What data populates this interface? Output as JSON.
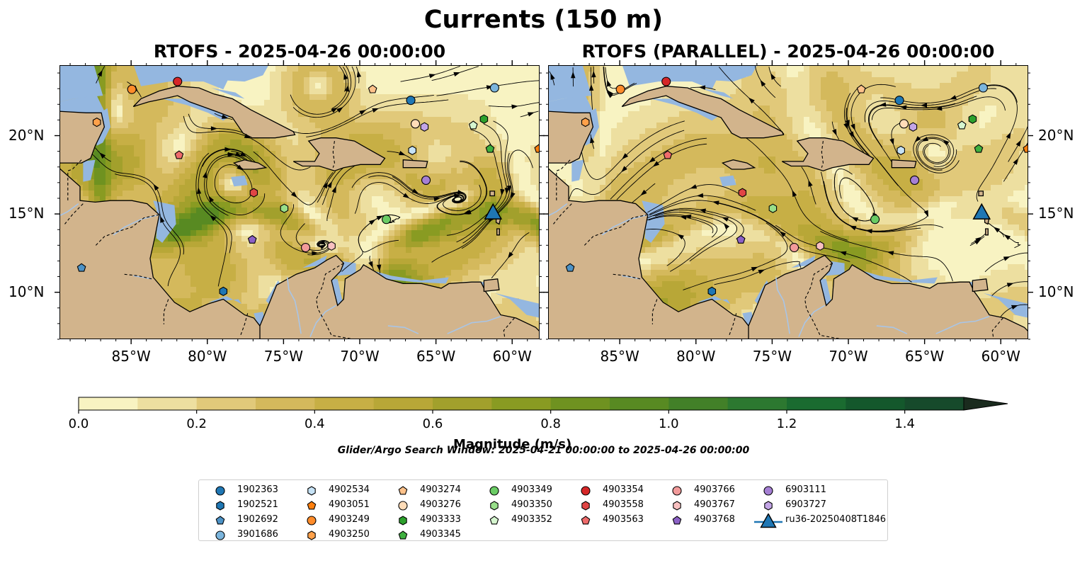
{
  "figure": {
    "title": "Currents (150 m)",
    "left_panel_title": "RTOFS - 2025-04-26 00:00:00",
    "right_panel_title": "RTOFS (PARALLEL) - 2025-04-26 00:00:00",
    "search_window": "Glider/Argo Search Window: 2025-04-21 00:00:00 to 2025-04-26 00:00:00"
  },
  "axes": {
    "x_ticks": [
      "85°W",
      "80°W",
      "75°W",
      "70°W",
      "65°W",
      "60°W"
    ],
    "x_values": [
      -85,
      -80,
      -75,
      -70,
      -65,
      -60
    ],
    "y_ticks": [
      "20°N",
      "15°N",
      "10°N"
    ],
    "y_values": [
      20,
      15,
      10
    ],
    "lon_range": [
      -89.7,
      -58.2
    ],
    "lat_range": [
      7.0,
      24.5
    ]
  },
  "colorbar": {
    "title": "Magnitude (m/s)",
    "ticks": [
      "0.0",
      "0.2",
      "0.4",
      "0.6",
      "0.8",
      "1.0",
      "1.2",
      "1.4"
    ],
    "tick_values": [
      0,
      0.2,
      0.4,
      0.6,
      0.8,
      1.0,
      1.2,
      1.4
    ],
    "range": [
      0,
      1.5
    ],
    "extend": "max",
    "colors": [
      "#f8f3c2",
      "#eddfa0",
      "#e1c97a",
      "#d4b95c",
      "#c7af45",
      "#b8a737",
      "#a2a02c",
      "#899b22",
      "#6f9220",
      "#588a22",
      "#428028",
      "#2c7830",
      "#1a6b30",
      "#14582c",
      "#164a2b",
      "#1b3a26",
      "#1a2b1e"
    ]
  },
  "colors": {
    "land": "#d2b48c",
    "water": "#94b7e0",
    "lakes": "#a9c5e6"
  },
  "legend": {
    "items": [
      {
        "label": "1902363",
        "color": "#1f77b4",
        "marker": "circle"
      },
      {
        "label": "1902521",
        "color": "#1f77b4",
        "marker": "hexagon"
      },
      {
        "label": "1902692",
        "color": "#4c92c6",
        "marker": "pentagon"
      },
      {
        "label": "3901686",
        "color": "#7bb5dd",
        "marker": "circle"
      },
      {
        "label": "4902534",
        "color": "#c6e2f5",
        "marker": "hexagon"
      },
      {
        "label": "4903051",
        "color": "#ff7f0e",
        "marker": "pentagon"
      },
      {
        "label": "4903249",
        "color": "#ff8c2a",
        "marker": "circle"
      },
      {
        "label": "4903250",
        "color": "#ffa14a",
        "marker": "hexagon"
      },
      {
        "label": "4903274",
        "color": "#ffc28a",
        "marker": "pentagon"
      },
      {
        "label": "4903276",
        "color": "#ffdcb8",
        "marker": "circle"
      },
      {
        "label": "4903333",
        "color": "#2ca02c",
        "marker": "hexagon"
      },
      {
        "label": "4903345",
        "color": "#3fb03f",
        "marker": "pentagon"
      },
      {
        "label": "4903349",
        "color": "#6acc64",
        "marker": "circle"
      },
      {
        "label": "4903350",
        "color": "#98df8a",
        "marker": "hexagon"
      },
      {
        "label": "4903352",
        "color": "#d5f5cf",
        "marker": "pentagon"
      },
      {
        "label": "4903354",
        "color": "#d62728",
        "marker": "circle"
      },
      {
        "label": "4903558",
        "color": "#e04545",
        "marker": "hexagon"
      },
      {
        "label": "4903563",
        "color": "#ef6b6b",
        "marker": "pentagon"
      },
      {
        "label": "4903766",
        "color": "#f29a9a",
        "marker": "circle"
      },
      {
        "label": "4903767",
        "color": "#f8c0c0",
        "marker": "hexagon"
      },
      {
        "label": "4903768",
        "color": "#8c61c6",
        "marker": "pentagon"
      },
      {
        "label": "6903111",
        "color": "#a57fd4",
        "marker": "circle"
      },
      {
        "label": "6903727",
        "color": "#c3a5e6",
        "marker": "hexagon"
      },
      {
        "label": "ru36-20250408T1846",
        "color": "#1f77b4",
        "marker": "triangle"
      }
    ]
  },
  "floats": [
    {
      "label": "1902363",
      "lon": -66.7,
      "lat": 22.3
    },
    {
      "label": "1902521",
      "lon": -79.0,
      "lat": 10.1
    },
    {
      "label": "1902692",
      "lon": -88.3,
      "lat": 11.6
    },
    {
      "label": "3901686",
      "lon": -61.2,
      "lat": 23.1
    },
    {
      "label": "4902534",
      "lon": -66.6,
      "lat": 19.1
    },
    {
      "label": "4903051",
      "lon": -58.3,
      "lat": 19.2
    },
    {
      "label": "4903249",
      "lon": -85.0,
      "lat": 23.0
    },
    {
      "label": "4903250",
      "lon": -87.3,
      "lat": 20.9
    },
    {
      "label": "4903274",
      "lon": -69.2,
      "lat": 23.0
    },
    {
      "label": "4903276",
      "lon": -66.4,
      "lat": 20.8
    },
    {
      "label": "4903333",
      "lon": -61.9,
      "lat": 21.1
    },
    {
      "label": "4903345",
      "lon": -61.5,
      "lat": 19.2
    },
    {
      "label": "4903349",
      "lon": -68.3,
      "lat": 14.7
    },
    {
      "label": "4903350",
      "lon": -75.0,
      "lat": 15.4
    },
    {
      "label": "4903352",
      "lon": -62.6,
      "lat": 20.7
    },
    {
      "label": "4903354",
      "lon": -82.0,
      "lat": 23.5
    },
    {
      "label": "4903558",
      "lon": -77.0,
      "lat": 16.4
    },
    {
      "label": "4903563",
      "lon": -81.9,
      "lat": 18.8
    },
    {
      "label": "4903766",
      "lon": -73.6,
      "lat": 12.9
    },
    {
      "label": "4903767",
      "lon": -71.9,
      "lat": 13.0
    },
    {
      "label": "4903768",
      "lon": -77.1,
      "lat": 13.4
    },
    {
      "label": "6903111",
      "lon": -65.7,
      "lat": 17.2
    },
    {
      "label": "6903727",
      "lon": -65.8,
      "lat": 20.6
    },
    {
      "label": "ru36-20250408T1846",
      "lon": -61.3,
      "lat": 15.1
    }
  ]
}
